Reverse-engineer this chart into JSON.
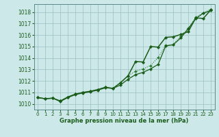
{
  "background_color": "#cce8e8",
  "grid_color": "#9bbfbf",
  "line_color_dark": "#1a5c1a",
  "line_color_med": "#2d7a2d",
  "xlabel": "Graphe pression niveau de la mer (hPa)",
  "ylim": [
    1009.5,
    1018.7
  ],
  "xlim": [
    -0.5,
    23.5
  ],
  "yticks": [
    1010,
    1011,
    1012,
    1013,
    1014,
    1015,
    1016,
    1017,
    1018
  ],
  "xticks": [
    0,
    1,
    2,
    3,
    4,
    5,
    6,
    7,
    8,
    9,
    10,
    11,
    12,
    13,
    14,
    15,
    16,
    17,
    18,
    19,
    20,
    21,
    22,
    23
  ],
  "series_top": [
    1010.55,
    1010.45,
    1010.5,
    1010.25,
    1010.6,
    1010.85,
    1011.0,
    1011.1,
    1011.25,
    1011.45,
    1011.35,
    1011.85,
    1012.45,
    1013.7,
    1013.65,
    1015.0,
    1014.95,
    1015.8,
    1015.85,
    1016.05,
    1016.3,
    1017.5,
    1017.45,
    1018.2
  ],
  "series_dotted": [
    1010.55,
    1010.45,
    1010.5,
    1010.25,
    1010.6,
    1010.85,
    1011.0,
    1011.1,
    1011.25,
    1011.45,
    1011.35,
    1011.85,
    1012.45,
    1012.85,
    1013.05,
    1013.35,
    1014.05,
    1015.1,
    1015.2,
    1015.9,
    1016.6,
    1017.55,
    1017.95,
    1018.25
  ],
  "series_bottom": [
    1010.55,
    1010.45,
    1010.5,
    1010.2,
    1010.55,
    1010.8,
    1010.95,
    1011.05,
    1011.2,
    1011.4,
    1011.35,
    1011.65,
    1012.15,
    1012.55,
    1012.75,
    1013.05,
    1013.45,
    1015.05,
    1015.15,
    1015.75,
    1016.55,
    1017.45,
    1017.9,
    1018.15
  ]
}
